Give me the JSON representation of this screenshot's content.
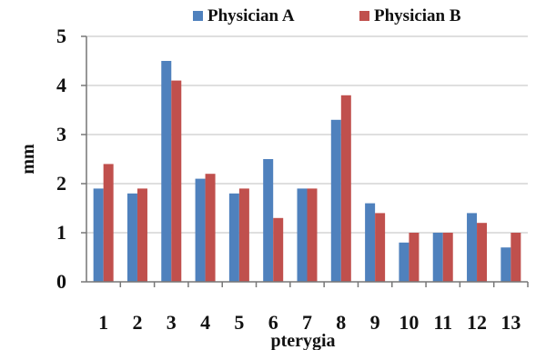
{
  "chart_data": {
    "type": "bar",
    "categories": [
      "1",
      "2",
      "3",
      "4",
      "5",
      "6",
      "7",
      "8",
      "9",
      "10",
      "11",
      "12",
      "13"
    ],
    "series": [
      {
        "name": "Physician A",
        "color": "#4f81bd",
        "values": [
          1.9,
          1.8,
          4.5,
          2.1,
          1.8,
          2.5,
          1.9,
          3.3,
          1.6,
          0.8,
          1.0,
          1.4,
          0.7
        ]
      },
      {
        "name": "Physician B",
        "color": "#c0504d",
        "values": [
          2.4,
          1.9,
          4.1,
          2.2,
          1.9,
          1.3,
          1.9,
          3.8,
          1.4,
          1.0,
          1.0,
          1.2,
          1.0
        ]
      }
    ],
    "xlabel": "pterygia",
    "ylabel": "mm",
    "ylim": [
      0,
      5
    ],
    "yticks": [
      "0",
      "1",
      "2",
      "3",
      "4",
      "5"
    ],
    "grid": true,
    "legend_position": "top"
  }
}
